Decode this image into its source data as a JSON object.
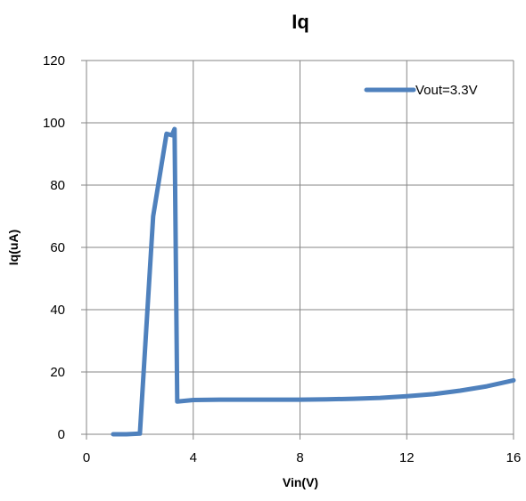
{
  "chart_data": {
    "type": "line",
    "title": "Iq",
    "xlabel": "Vin(V)",
    "ylabel": "Iq(uA)",
    "xlim": [
      0,
      16
    ],
    "ylim": [
      0,
      120
    ],
    "xticks": [
      0,
      4,
      8,
      12,
      16
    ],
    "yticks": [
      0,
      20,
      40,
      60,
      80,
      100,
      120
    ],
    "grid": "vertical and horizontal gridlines at major ticks",
    "legend_position": "top-right",
    "series": [
      {
        "name": "Vout=3.3V",
        "color": "#4F81BD",
        "x": [
          1.0,
          1.5,
          2.0,
          2.5,
          3.0,
          3.2,
          3.3,
          3.4,
          4.0,
          5.0,
          6.0,
          7.0,
          8.0,
          9.0,
          10.0,
          11.0,
          12.0,
          13.0,
          14.0,
          15.0,
          16.0
        ],
        "y": [
          0.0,
          0.0,
          0.2,
          70.0,
          96.5,
          96.0,
          98.0,
          10.5,
          11.0,
          11.1,
          11.1,
          11.1,
          11.1,
          11.2,
          11.4,
          11.7,
          12.2,
          12.9,
          14.0,
          15.4,
          17.3
        ]
      }
    ]
  }
}
